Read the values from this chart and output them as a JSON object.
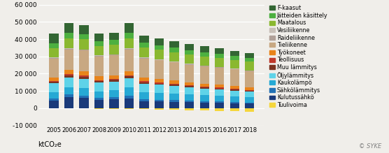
{
  "years": [
    2005,
    2006,
    2007,
    2008,
    2009,
    2010,
    2011,
    2012,
    2013,
    2014,
    2015,
    2016,
    2017,
    2018
  ],
  "categories": [
    "Tuulivoima",
    "Kulutussähkö",
    "Sähkölämmitys",
    "Kaukolämpö",
    "Öljylämmitys",
    "Muu lämmitys",
    "Teollisuus",
    "Työkoneet",
    "Tieliikenne",
    "Raideliikenne",
    "Vesiliikenne",
    "Maatalous",
    "Jätteiden käsittely",
    "F-kaasut"
  ],
  "colors": [
    "#f5d63c",
    "#1a3a7a",
    "#2271b5",
    "#26a9d4",
    "#5fd3e8",
    "#7b3320",
    "#c0392b",
    "#e8841a",
    "#c8a882",
    "#b0a098",
    "#c8c0b8",
    "#8ab830",
    "#4db040",
    "#336633"
  ],
  "data": {
    "Tuulivoima": [
      -100,
      -200,
      -250,
      -300,
      -400,
      -500,
      -600,
      -800,
      -1000,
      -1200,
      -1400,
      -1600,
      -1800,
      -2000
    ],
    "Kulutussähkö": [
      4500,
      6500,
      6000,
      4800,
      5200,
      5800,
      4000,
      3800,
      3600,
      3400,
      3200,
      3000,
      2800,
      2600
    ],
    "Sähkölämmitys": [
      1200,
      1500,
      1400,
      1200,
      1300,
      1500,
      1200,
      1100,
      1000,
      950,
      900,
      850,
      800,
      750
    ],
    "Kaukolämpö": [
      3500,
      4000,
      4200,
      3800,
      4000,
      4600,
      4000,
      3800,
      3700,
      3500,
      3400,
      3300,
      3200,
      3100
    ],
    "Öljylämmitys": [
      5200,
      5800,
      5500,
      5000,
      5000,
      5500,
      5000,
      4800,
      4500,
      4200,
      3900,
      3700,
      3400,
      3200
    ],
    "Muu lämmitys": [
      800,
      1000,
      1000,
      800,
      900,
      1000,
      900,
      800,
      700,
      650,
      600,
      580,
      560,
      540
    ],
    "Teollisuus": [
      600,
      800,
      800,
      700,
      650,
      750,
      650,
      600,
      550,
      520,
      500,
      480,
      460,
      440
    ],
    "Työkoneet": [
      2000,
      2400,
      2500,
      2200,
      2100,
      2400,
      2100,
      2000,
      1900,
      1800,
      1800,
      1750,
      1700,
      1650
    ],
    "Tieliikenne": [
      11000,
      12000,
      12000,
      11500,
      11500,
      12500,
      11000,
      10800,
      10500,
      10200,
      10000,
      9800,
      9500,
      9200
    ],
    "Raideliikenne": [
      300,
      350,
      350,
      300,
      300,
      350,
      300,
      280,
      260,
      250,
      240,
      230,
      220,
      210
    ],
    "Vesiliikenne": [
      250,
      300,
      300,
      250,
      250,
      300,
      260,
      250,
      240,
      230,
      220,
      210,
      200,
      190
    ],
    "Maatalous": [
      5500,
      5800,
      5800,
      5500,
      5600,
      5800,
      5600,
      5500,
      5400,
      5300,
      5200,
      5200,
      5100,
      5000
    ],
    "Jätteiden käsittely": [
      2800,
      3000,
      3000,
      2800,
      2800,
      3000,
      2800,
      2700,
      2600,
      2500,
      2400,
      2300,
      2200,
      2100
    ],
    "F-kaasut": [
      5500,
      5800,
      5200,
      4400,
      4200,
      5800,
      4200,
      4000,
      3800,
      3600,
      3400,
      3200,
      3000,
      2800
    ]
  },
  "ylim": [
    -10000,
    60000
  ],
  "yticks": [
    -10000,
    0,
    10000,
    20000,
    30000,
    40000,
    50000,
    60000
  ],
  "ytick_labels": [
    "-10 000",
    "0",
    "10 000",
    "20 000",
    "30 000",
    "40 000",
    "50 000",
    "60 000"
  ],
  "ylabel": "ktCO₂e",
  "watermark": "© SYKE",
  "bg_color": "#f0eeea"
}
